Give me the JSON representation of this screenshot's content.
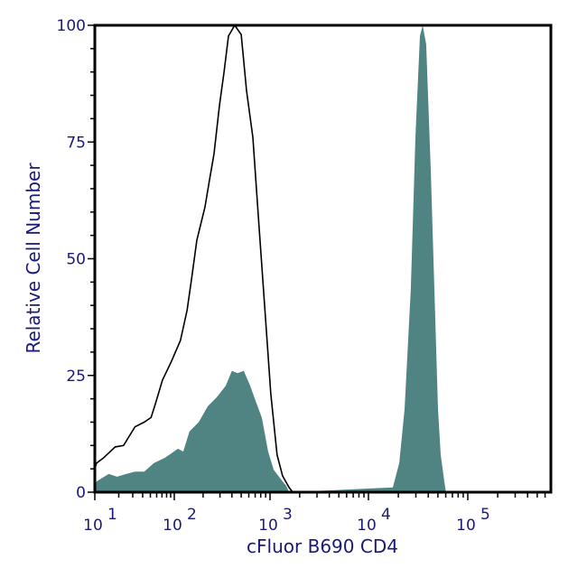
{
  "chart_data": {
    "type": "area",
    "title": "",
    "xlabel": "cFluor B690 CD4",
    "ylabel": "Relative Cell Number",
    "x_scale": "log",
    "xlim": [
      10,
      690000
    ],
    "ylim": [
      0,
      100
    ],
    "x_tick_labels": [
      {
        "base": "10",
        "exp": "1",
        "value": 10
      },
      {
        "base": "10",
        "exp": "2",
        "value": 100
      },
      {
        "base": "10",
        "exp": "3",
        "value": 1000
      },
      {
        "base": "10",
        "exp": "4",
        "value": 10000
      },
      {
        "base": "10",
        "exp": "5",
        "value": 100000
      }
    ],
    "y_ticks": [
      0,
      25,
      50,
      75,
      100
    ],
    "y_tick_labels": [
      "0",
      "25",
      "50",
      "75",
      "100"
    ],
    "grid": false,
    "colors": {
      "filled": "#4f8482",
      "open": "#000000",
      "text": "#1a1a7a"
    },
    "series": [
      {
        "style": "open-outline",
        "x": [
          10,
          10.5,
          13,
          18,
          23,
          32,
          42,
          51,
          58,
          71,
          92,
          116,
          136,
          151,
          172,
          209,
          234,
          260,
          296,
          331,
          368,
          428,
          500,
          568,
          662,
          771,
          878,
          1020,
          1180,
          1340,
          1560,
          1700
        ],
        "y": [
          5,
          6.2,
          7.4,
          9.7,
          10,
          14,
          15,
          16,
          19,
          24,
          28,
          32.5,
          39,
          45.5,
          54,
          61,
          67,
          72.5,
          82.8,
          90,
          97.7,
          100,
          98,
          86,
          76,
          56.5,
          40,
          21,
          8,
          3.5,
          1,
          0
        ]
      },
      {
        "style": "filled",
        "x": [
          10,
          10.5,
          15,
          19,
          25,
          32,
          42,
          55,
          77,
          109,
          124,
          144,
          180,
          224,
          277,
          345,
          400,
          458,
          532,
          620,
          703,
          822,
          955,
          1090,
          1340,
          1460,
          1560,
          17600,
          20400,
          23100,
          26700,
          29700,
          33000,
          35100,
          38100,
          42400,
          47100,
          50100,
          53400,
          58000,
          60300
        ],
        "y": [
          1.5,
          2.3,
          3.9,
          3.3,
          3.9,
          4.4,
          4.4,
          6.2,
          7.4,
          9.3,
          8.7,
          13,
          15,
          18.4,
          20.3,
          22.8,
          26,
          25.5,
          26,
          22.8,
          19.7,
          15.9,
          8.7,
          4.8,
          2.3,
          1.4,
          0,
          1,
          6.2,
          17.8,
          43.5,
          76,
          97.7,
          100,
          96,
          69,
          37,
          17.8,
          8,
          2.3,
          0
        ]
      }
    ]
  }
}
